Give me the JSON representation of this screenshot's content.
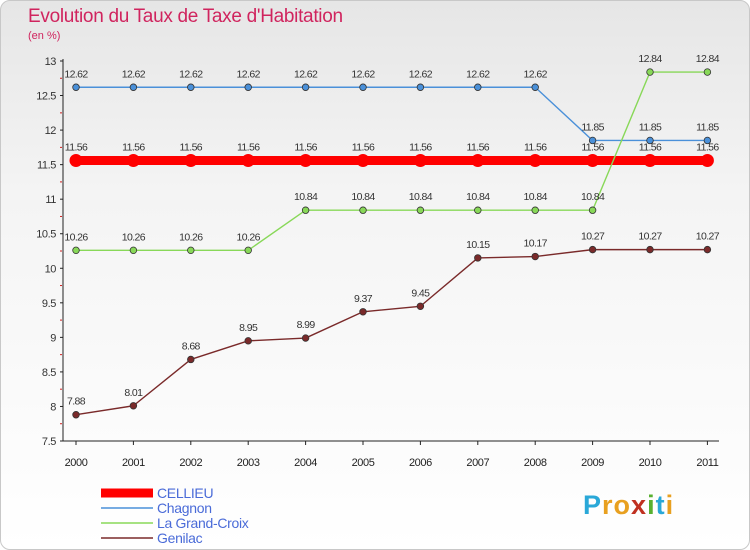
{
  "header": {
    "title": "Evolution du Taux de Taxe d'Habitation",
    "subtitle": "(en %)"
  },
  "chart_data": {
    "type": "line",
    "title": "Evolution du Taux de Taxe d'Habitation",
    "ylabel": "(en %)",
    "xlabel": "",
    "x": [
      "2000",
      "2001",
      "2002",
      "2003",
      "2004",
      "2005",
      "2006",
      "2007",
      "2008",
      "2009",
      "2010",
      "2011"
    ],
    "ylim": [
      7.5,
      13
    ],
    "yticks": [
      7.5,
      8,
      8.5,
      9,
      9.5,
      10,
      10.5,
      11,
      11.5,
      12,
      12.5,
      13
    ],
    "grid": false,
    "legend_position": "bottom-left",
    "series": [
      {
        "name": "CELLIEU",
        "color": "#ff0000",
        "values": [
          11.56,
          11.56,
          11.56,
          11.56,
          11.56,
          11.56,
          11.56,
          11.56,
          11.56,
          11.56,
          11.56,
          11.56
        ],
        "labels": [
          "11.56",
          "11.56",
          "11.56",
          "11.56",
          "11.56",
          "11.56",
          "11.56",
          "11.56",
          "11.56",
          "11.56",
          "11.56",
          "11.56"
        ]
      },
      {
        "name": "Chagnon",
        "color": "#4a90d9",
        "values": [
          12.62,
          12.62,
          12.62,
          12.62,
          12.62,
          12.62,
          12.62,
          12.62,
          12.62,
          11.85,
          11.85,
          11.85
        ],
        "labels": [
          "12.62",
          "12.62",
          "12.62",
          "12.62",
          "12.62",
          "12.62",
          "12.62",
          "12.62",
          "12.62",
          "11.85",
          "11.85",
          "11.85"
        ]
      },
      {
        "name": "La Grand-Croix",
        "color": "#88d858",
        "values": [
          10.26,
          10.26,
          10.26,
          10.26,
          10.84,
          10.84,
          10.84,
          10.84,
          10.84,
          10.84,
          12.84,
          12.84
        ],
        "labels": [
          "10.26",
          "10.26",
          "10.26",
          "10.26",
          "10.84",
          "10.84",
          "10.84",
          "10.84",
          "10.84",
          "10.84",
          "12.84",
          "12.84"
        ]
      },
      {
        "name": "Genilac",
        "color": "#7a2a2a",
        "values": [
          7.88,
          8.01,
          8.68,
          8.95,
          8.99,
          9.37,
          9.45,
          10.15,
          10.17,
          10.27,
          10.27,
          10.27
        ],
        "labels": [
          "7.88",
          "8.01",
          "8.68",
          "8.95",
          "8.99",
          "9.37",
          "9.45",
          "10.15",
          "10.17",
          "10.27",
          "10.27",
          "10.27"
        ]
      }
    ]
  },
  "legend": {
    "items": [
      {
        "label": "CELLIEU",
        "color": "#ff0000"
      },
      {
        "label": "Chagnon",
        "color": "#4a90d9"
      },
      {
        "label": "La Grand-Croix",
        "color": "#88d858"
      },
      {
        "label": "Genilac",
        "color": "#7a2a2a"
      }
    ]
  },
  "logo": {
    "letters": [
      "P",
      "r",
      "o",
      "x",
      "i",
      "t",
      "i"
    ],
    "colors": [
      "#2aa8d8",
      "#e8a020",
      "#e8a020",
      "#c03020",
      "#58b030",
      "#2aa8d8",
      "#e8a020"
    ]
  }
}
